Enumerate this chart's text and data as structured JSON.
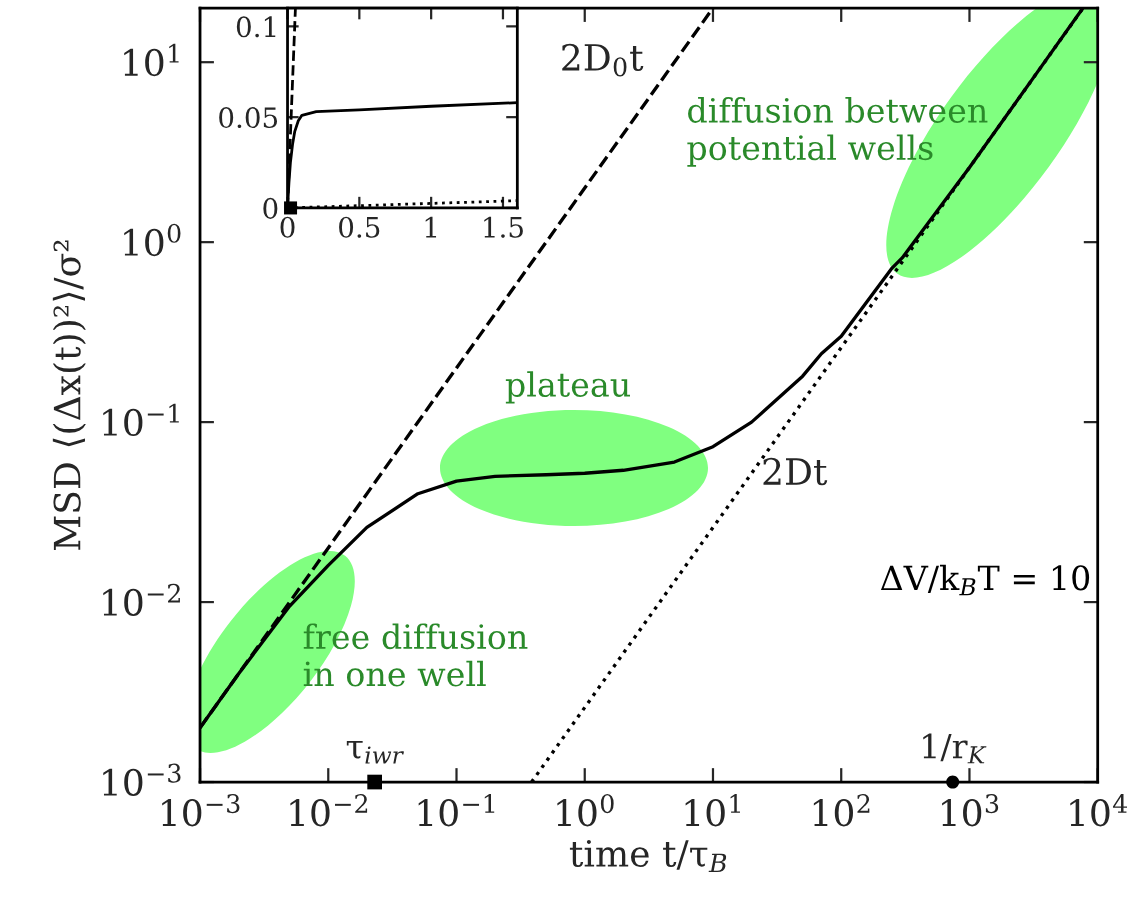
{
  "chart_data": [
    {
      "type": "line",
      "xlabel": "time t/τ$_{B}$",
      "ylabel": "MSD ⟨(Δx(t))²⟩/σ²",
      "log": "xy",
      "grid": false,
      "legend": false,
      "xlim": [
        0.001,
        10000
      ],
      "ylim": [
        0.001,
        20
      ],
      "xticks": [
        {
          "value": 0.001,
          "label": "10$^{−3}$"
        },
        {
          "value": 0.01,
          "label": "10$^{−2}$"
        },
        {
          "value": 0.1,
          "label": "10$^{−1}$"
        },
        {
          "value": 1,
          "label": "10$^{0}$"
        },
        {
          "value": 10,
          "label": "10$^{1}$"
        },
        {
          "value": 100,
          "label": "10$^{2}$"
        },
        {
          "value": 1000,
          "label": "10$^{3}$"
        },
        {
          "value": 10000,
          "label": "10$^{4}$"
        }
      ],
      "yticks": [
        {
          "value": 0.001,
          "label": "10$^{−3}$"
        },
        {
          "value": 0.01,
          "label": "10$^{−2}$"
        },
        {
          "value": 0.1,
          "label": "10$^{−1}$"
        },
        {
          "value": 1,
          "label": "10$^{0}$"
        },
        {
          "value": 10,
          "label": "10$^{1}$"
        }
      ],
      "series": [
        {
          "color": "#000000",
          "line_style": "solid",
          "x": [
            0.001,
            0.002,
            0.005,
            0.01,
            0.02,
            0.05,
            0.1,
            0.2,
            0.5,
            1,
            2,
            5,
            10,
            20,
            50,
            70,
            100,
            250,
            300,
            1000,
            3000,
            7600
          ],
          "values": [
            0.002,
            0.004,
            0.0095,
            0.016,
            0.026,
            0.04,
            0.047,
            0.05,
            0.051,
            0.052,
            0.054,
            0.06,
            0.073,
            0.1,
            0.18,
            0.24,
            0.3,
            0.72,
            0.82,
            2.6,
            7.8,
            19.8
          ]
        },
        {
          "name": "2D$_{0}$t",
          "color": "#000000",
          "line_style": "dashed",
          "x": [
            0.001,
            10
          ],
          "values": [
            0.002,
            20
          ]
        },
        {
          "name": "2Dt",
          "color": "#000000",
          "line_style": "dotted",
          "x": [
            0.385,
            7700
          ],
          "values": [
            0.001,
            20
          ]
        },
        {
          "name": "τ$_{iwr}$",
          "type": "scatter",
          "marker": "square",
          "color": "#000000",
          "x": [
            0.023
          ],
          "values": [
            0.001
          ]
        },
        {
          "name": "1/r$_{K}$",
          "type": "scatter",
          "marker": "circle",
          "color": "#000000",
          "x": [
            740
          ],
          "values": [
            0.001
          ]
        }
      ],
      "annotations": [
        "free diffusion\nin one well",
        "plateau",
        "diffusion between\npotential wells",
        "ΔV/k$_{B}$T = 10"
      ]
    },
    {
      "type": "line",
      "grid": false,
      "legend": false,
      "xlim": [
        0,
        1.6
      ],
      "ylim": [
        0,
        0.11
      ],
      "xticks": [
        0,
        0.5,
        1,
        1.5
      ],
      "yticks": [
        0,
        0.05,
        0.1
      ],
      "series": [
        {
          "color": "#000000",
          "line_style": "solid",
          "x": [
            0,
            0.01,
            0.02,
            0.035,
            0.05,
            0.075,
            0.1,
            0.2,
            0.5,
            1,
            1.6
          ],
          "values": [
            0,
            0.014,
            0.025,
            0.035,
            0.042,
            0.048,
            0.051,
            0.053,
            0.054,
            0.056,
            0.058
          ]
        },
        {
          "color": "#000000",
          "line_style": "dashed",
          "x": [
            0,
            0.055
          ],
          "values": [
            0,
            0.11
          ]
        },
        {
          "color": "#000000",
          "line_style": "dotted",
          "x": [
            0,
            1.6
          ],
          "values": [
            0,
            0.004
          ]
        },
        {
          "type": "scatter",
          "marker": "square",
          "color": "#000000",
          "x": [
            0.021
          ],
          "values": [
            0
          ]
        }
      ]
    }
  ]
}
